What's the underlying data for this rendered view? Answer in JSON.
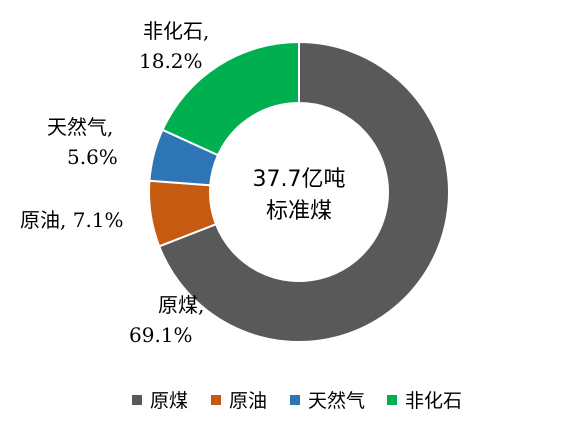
{
  "chart_data": {
    "type": "pie",
    "donut": true,
    "center_text": [
      "37.7亿吨",
      "标准煤"
    ],
    "categories": [
      "原煤",
      "原油",
      "天然气",
      "非化石"
    ],
    "values": [
      69.1,
      7.1,
      5.6,
      18.2
    ],
    "unit": "%",
    "colors": [
      "#595959",
      "#C55A11",
      "#2E75B6",
      "#00B050"
    ],
    "data_labels": [
      [
        "原煤,",
        "69.1%"
      ],
      [
        "原油, 7.1%"
      ],
      [
        "天然气,",
        "5.6%"
      ],
      [
        "非化石,",
        "18.2%"
      ]
    ],
    "legend": {
      "position": "bottom",
      "entries": [
        "原煤",
        "原油",
        "天然气",
        "非化石"
      ]
    }
  }
}
